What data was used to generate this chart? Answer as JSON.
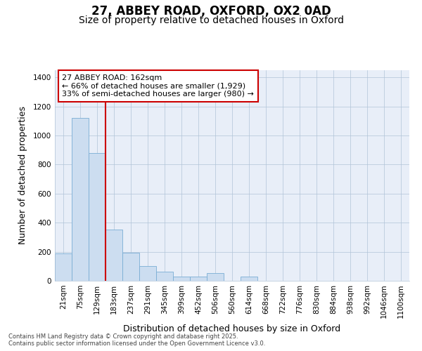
{
  "title1": "27, ABBEY ROAD, OXFORD, OX2 0AD",
  "title2": "Size of property relative to detached houses in Oxford",
  "xlabel": "Distribution of detached houses by size in Oxford",
  "ylabel": "Number of detached properties",
  "bar_color": "#ccddf0",
  "bar_edge_color": "#7aadd4",
  "vline_color": "#cc0000",
  "categories": [
    "21sqm",
    "75sqm",
    "129sqm",
    "183sqm",
    "237sqm",
    "291sqm",
    "345sqm",
    "399sqm",
    "452sqm",
    "506sqm",
    "560sqm",
    "614sqm",
    "668sqm",
    "722sqm",
    "776sqm",
    "830sqm",
    "884sqm",
    "938sqm",
    "992sqm",
    "1046sqm",
    "1100sqm"
  ],
  "values": [
    190,
    1120,
    880,
    355,
    195,
    100,
    65,
    30,
    30,
    55,
    0,
    30,
    0,
    0,
    0,
    0,
    0,
    0,
    0,
    0,
    0
  ],
  "annotation_text": "27 ABBEY ROAD: 162sqm\n← 66% of detached houses are smaller (1,929)\n33% of semi-detached houses are larger (980) →",
  "annotation_box_facecolor": "#ffffff",
  "annotation_box_edgecolor": "#cc0000",
  "ylim": [
    0,
    1450
  ],
  "yticks": [
    0,
    200,
    400,
    600,
    800,
    1000,
    1200,
    1400
  ],
  "plot_background": "#e8eef8",
  "footer1": "Contains HM Land Registry data © Crown copyright and database right 2025.",
  "footer2": "Contains public sector information licensed under the Open Government Licence v3.0.",
  "title_fontsize": 12,
  "subtitle_fontsize": 10,
  "tick_fontsize": 7.5,
  "label_fontsize": 9,
  "annotation_fontsize": 8,
  "footer_fontsize": 6
}
